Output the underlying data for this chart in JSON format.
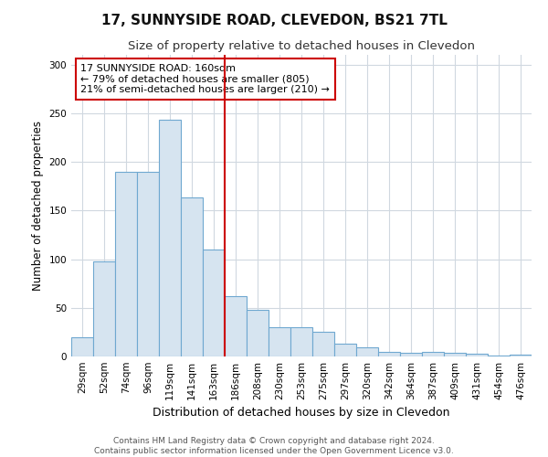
{
  "title": "17, SUNNYSIDE ROAD, CLEVEDON, BS21 7TL",
  "subtitle": "Size of property relative to detached houses in Clevedon",
  "xlabel": "Distribution of detached houses by size in Clevedon",
  "ylabel": "Number of detached properties",
  "categories": [
    "29sqm",
    "52sqm",
    "74sqm",
    "96sqm",
    "119sqm",
    "141sqm",
    "163sqm",
    "186sqm",
    "208sqm",
    "230sqm",
    "253sqm",
    "275sqm",
    "297sqm",
    "320sqm",
    "342sqm",
    "364sqm",
    "387sqm",
    "409sqm",
    "431sqm",
    "454sqm",
    "476sqm"
  ],
  "values": [
    20,
    98,
    190,
    190,
    243,
    163,
    110,
    62,
    48,
    30,
    30,
    25,
    13,
    9,
    5,
    4,
    5,
    4,
    3,
    1,
    2
  ],
  "bar_color": "#d6e4f0",
  "bar_edge_color": "#6fa8d0",
  "vline_index": 6,
  "vline_color": "#cc0000",
  "annotation_text": "17 SUNNYSIDE ROAD: 160sqm\n← 79% of detached houses are smaller (805)\n21% of semi-detached houses are larger (210) →",
  "annotation_box_color": "#ffffff",
  "annotation_box_edge_color": "#cc0000",
  "ylim": [
    0,
    310
  ],
  "yticks": [
    0,
    50,
    100,
    150,
    200,
    250,
    300
  ],
  "footer_text": "Contains HM Land Registry data © Crown copyright and database right 2024.\nContains public sector information licensed under the Open Government Licence v3.0.",
  "bg_color": "#ffffff",
  "plot_bg_color": "#ffffff",
  "grid_color": "#d0d8e0",
  "title_fontsize": 11,
  "subtitle_fontsize": 9.5,
  "xlabel_fontsize": 9,
  "ylabel_fontsize": 8.5,
  "tick_fontsize": 7.5,
  "footer_fontsize": 6.5,
  "annotation_fontsize": 8
}
